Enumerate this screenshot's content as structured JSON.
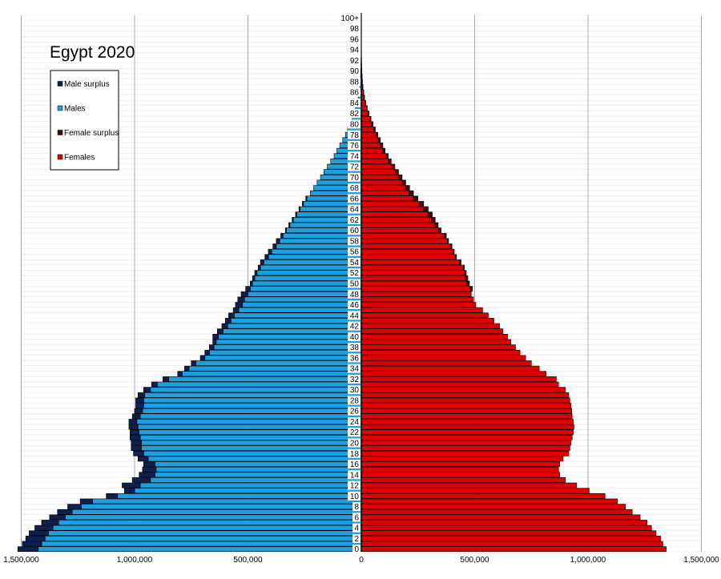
{
  "chart_data": {
    "type": "bar",
    "orientation": "horizontal",
    "title": "Egypt 2020",
    "xlabel": "",
    "ylabel": "",
    "xlim": [
      -1500000,
      1500000
    ],
    "x_ticks": [
      -1500000,
      -1000000,
      -500000,
      0,
      500000,
      1000000,
      1500000
    ],
    "x_tick_labels": [
      "1,500,000",
      "1,000,000",
      "500,000",
      "0",
      "500,000",
      "1,000,000",
      "1,500,000"
    ],
    "grid": true,
    "legend_position": "top-left",
    "categories": [
      "0",
      "1",
      "2",
      "3",
      "4",
      "5",
      "6",
      "7",
      "8",
      "9",
      "10",
      "11",
      "12",
      "13",
      "14",
      "15",
      "16",
      "17",
      "18",
      "19",
      "20",
      "21",
      "22",
      "23",
      "24",
      "25",
      "26",
      "27",
      "28",
      "29",
      "30",
      "31",
      "32",
      "33",
      "34",
      "35",
      "36",
      "37",
      "38",
      "39",
      "40",
      "41",
      "42",
      "43",
      "44",
      "45",
      "46",
      "47",
      "48",
      "49",
      "50",
      "51",
      "52",
      "53",
      "54",
      "55",
      "56",
      "57",
      "58",
      "59",
      "60",
      "61",
      "62",
      "63",
      "64",
      "65",
      "66",
      "67",
      "68",
      "69",
      "70",
      "71",
      "72",
      "73",
      "74",
      "75",
      "76",
      "77",
      "78",
      "79",
      "80",
      "81",
      "82",
      "83",
      "84",
      "85",
      "86",
      "87",
      "88",
      "89",
      "90",
      "91",
      "92",
      "93",
      "94",
      "95",
      "96",
      "97",
      "98",
      "99",
      "100+"
    ],
    "y_tick_labels": [
      "0",
      "2",
      "4",
      "6",
      "8",
      "10",
      "12",
      "14",
      "16",
      "18",
      "20",
      "22",
      "24",
      "26",
      "28",
      "30",
      "32",
      "34",
      "36",
      "38",
      "40",
      "42",
      "44",
      "46",
      "48",
      "50",
      "52",
      "54",
      "56",
      "58",
      "60",
      "62",
      "64",
      "66",
      "68",
      "70",
      "72",
      "74",
      "76",
      "78",
      "80",
      "82",
      "84",
      "86",
      "88",
      "90",
      "92",
      "94",
      "96",
      "98",
      "100+"
    ],
    "series": [
      {
        "name": "Males",
        "color": "#1e9fe0",
        "values": [
          1425000,
          1410000,
          1395000,
          1380000,
          1360000,
          1335000,
          1305000,
          1275000,
          1235000,
          1185000,
          1075000,
          1000000,
          975000,
          930000,
          910000,
          905000,
          910000,
          940000,
          960000,
          970000,
          970000,
          975000,
          980000,
          985000,
          990000,
          975000,
          965000,
          960000,
          960000,
          955000,
          930000,
          900000,
          850000,
          790000,
          760000,
          730000,
          690000,
          670000,
          650000,
          640000,
          630000,
          610000,
          590000,
          575000,
          560000,
          540000,
          525000,
          515000,
          500000,
          490000,
          480000,
          470000,
          460000,
          445000,
          430000,
          410000,
          395000,
          375000,
          360000,
          345000,
          330000,
          315000,
          300000,
          285000,
          270000,
          255000,
          240000,
          225000,
          210000,
          195000,
          180000,
          165000,
          150000,
          135000,
          120000,
          108000,
          95000,
          82000,
          70000,
          60000,
          50000,
          40000,
          32000,
          25000,
          19000,
          14000,
          10000,
          7000,
          5000,
          3500,
          2500,
          1700,
          1200,
          800,
          500,
          300,
          200,
          100,
          60,
          30,
          20
        ]
      },
      {
        "name": "Male surplus",
        "color": "#0f1f4f",
        "values": [
          90000,
          85000,
          85000,
          85000,
          80000,
          75000,
          70000,
          65000,
          60000,
          55000,
          50000,
          45000,
          80000,
          80000,
          70000,
          60000,
          50000,
          45000,
          45000,
          45000,
          45000,
          45000,
          40000,
          40000,
          35000,
          35000,
          35000,
          35000,
          35000,
          30000,
          30000,
          25000,
          25000,
          20000,
          20000,
          20000,
          20000,
          20000,
          20000,
          15000,
          25000,
          25000,
          25000,
          25000,
          25000,
          25000,
          30000,
          30000,
          30000,
          20000,
          10000,
          10000,
          10000,
          10000,
          15000,
          15000,
          15000,
          15000,
          15000,
          10000,
          5000,
          5000,
          5000,
          5000,
          5000,
          5000,
          5000,
          0,
          0,
          0,
          0,
          0,
          0,
          0,
          0,
          0,
          0,
          0,
          0,
          0,
          0,
          0,
          0,
          0,
          0,
          0,
          0,
          0,
          0,
          0,
          0,
          0,
          0,
          0,
          0,
          0,
          0,
          0,
          0,
          0,
          0
        ]
      },
      {
        "name": "Females",
        "color": "#e00000",
        "values": [
          1345000,
          1330000,
          1320000,
          1300000,
          1280000,
          1260000,
          1230000,
          1195000,
          1165000,
          1130000,
          1075000,
          1005000,
          950000,
          900000,
          875000,
          870000,
          875000,
          890000,
          915000,
          920000,
          925000,
          930000,
          935000,
          938000,
          935000,
          930000,
          928000,
          925000,
          920000,
          915000,
          900000,
          870000,
          860000,
          815000,
          785000,
          750000,
          725000,
          700000,
          680000,
          660000,
          645000,
          625000,
          610000,
          585000,
          560000,
          535000,
          505000,
          495000,
          485000,
          480000,
          465000,
          460000,
          455000,
          450000,
          435000,
          415000,
          405000,
          395000,
          380000,
          365000,
          340000,
          325000,
          310000,
          295000,
          275000,
          255000,
          230000,
          210000,
          195000,
          180000,
          165000,
          150000,
          135000,
          120000,
          108000,
          95000,
          85000,
          75000,
          65000,
          55000,
          46000,
          38000,
          30000,
          23000,
          17000,
          12000,
          9000,
          6000,
          4000,
          2800,
          1800,
          1200,
          800,
          500,
          300,
          200,
          100,
          60,
          30,
          20,
          10
        ]
      },
      {
        "name": "Female surplus",
        "color": "#4a0a0a",
        "values": [
          0,
          0,
          0,
          0,
          0,
          0,
          0,
          0,
          0,
          0,
          0,
          0,
          0,
          0,
          0,
          0,
          0,
          0,
          0,
          0,
          0,
          0,
          0,
          0,
          0,
          0,
          0,
          0,
          0,
          0,
          0,
          0,
          0,
          0,
          0,
          0,
          0,
          0,
          0,
          0,
          0,
          0,
          0,
          0,
          0,
          0,
          0,
          0,
          0,
          10000,
          12000,
          10000,
          8000,
          5000,
          5000,
          5000,
          5000,
          5000,
          5000,
          10000,
          12000,
          14000,
          16000,
          18000,
          20000,
          20000,
          20000,
          20000,
          18000,
          16000,
          15000,
          14000,
          13000,
          12000,
          11000,
          10000,
          10000,
          9000,
          8000,
          7000,
          6000,
          5000,
          4000,
          3500,
          3000,
          2500,
          2000,
          1500,
          1200,
          1000,
          800,
          600,
          400,
          300,
          200,
          100,
          80,
          50,
          30,
          20,
          10
        ]
      }
    ]
  },
  "legend": {
    "items": [
      {
        "label": "Male surplus",
        "color": "#0f1f4f"
      },
      {
        "label": "Males",
        "color": "#1e9fe0"
      },
      {
        "label": "Female surplus",
        "color": "#4a0a0a"
      },
      {
        "label": "Females",
        "color": "#e00000"
      }
    ]
  }
}
